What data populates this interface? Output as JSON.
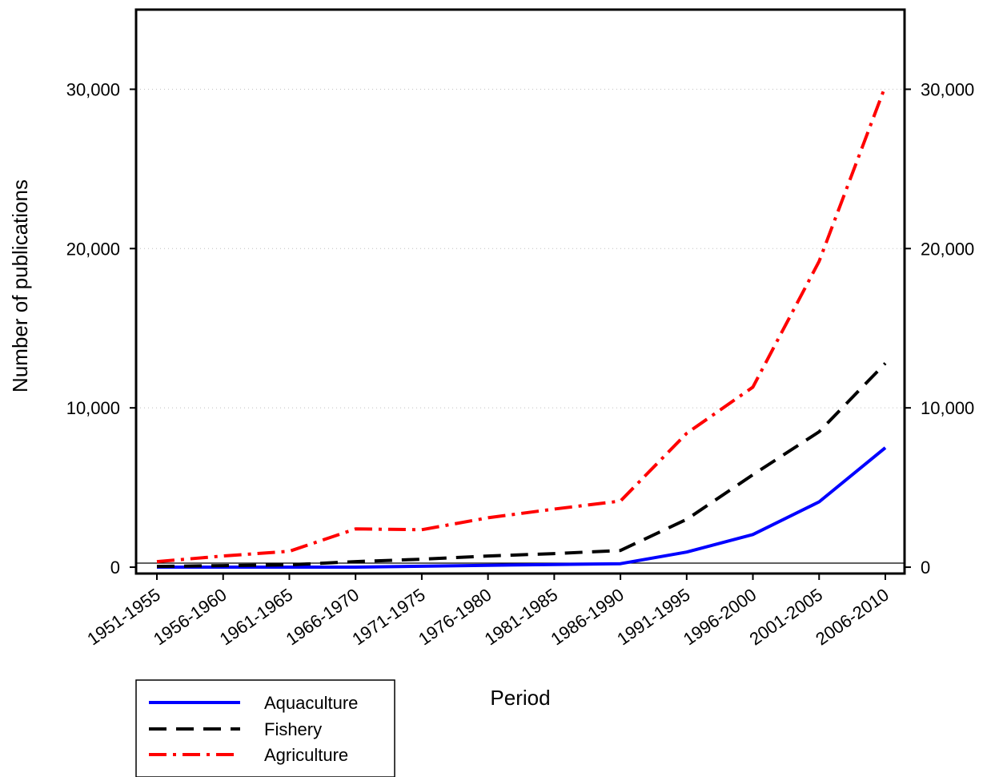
{
  "chart_data": {
    "type": "line",
    "title": "",
    "xlabel": "Period",
    "ylabel": "Number of publications",
    "categories": [
      "1951-1955",
      "1956-1960",
      "1961-1965",
      "1966-1970",
      "1971-1975",
      "1976-1980",
      "1981-1985",
      "1986-1990",
      "1991-1995",
      "1996-2000",
      "2001-2005",
      "2006-2010"
    ],
    "ylim": [
      -400,
      35000
    ],
    "yticks": [
      0,
      10000,
      20000,
      30000
    ],
    "ytick_labels": [
      "0",
      "10,000",
      "20,000",
      "30,000"
    ],
    "right_axis": true,
    "grid": "horizontal dotted",
    "legend_position": "bottom-left",
    "series": [
      {
        "name": "Aquaculture",
        "color": "#0000ff",
        "style": "solid",
        "values": [
          0,
          0,
          0,
          0,
          60,
          120,
          170,
          220,
          950,
          2050,
          4100,
          7500
        ]
      },
      {
        "name": "Fishery",
        "color": "#000000",
        "style": "dashed",
        "values": [
          50,
          100,
          150,
          350,
          500,
          700,
          850,
          1050,
          3000,
          5800,
          8500,
          12800
        ]
      },
      {
        "name": "Agriculture",
        "color": "#ff0000",
        "style": "dash-dot",
        "values": [
          350,
          700,
          1000,
          2400,
          2350,
          3100,
          3650,
          4150,
          8400,
          11300,
          19200,
          30200
        ]
      }
    ]
  }
}
